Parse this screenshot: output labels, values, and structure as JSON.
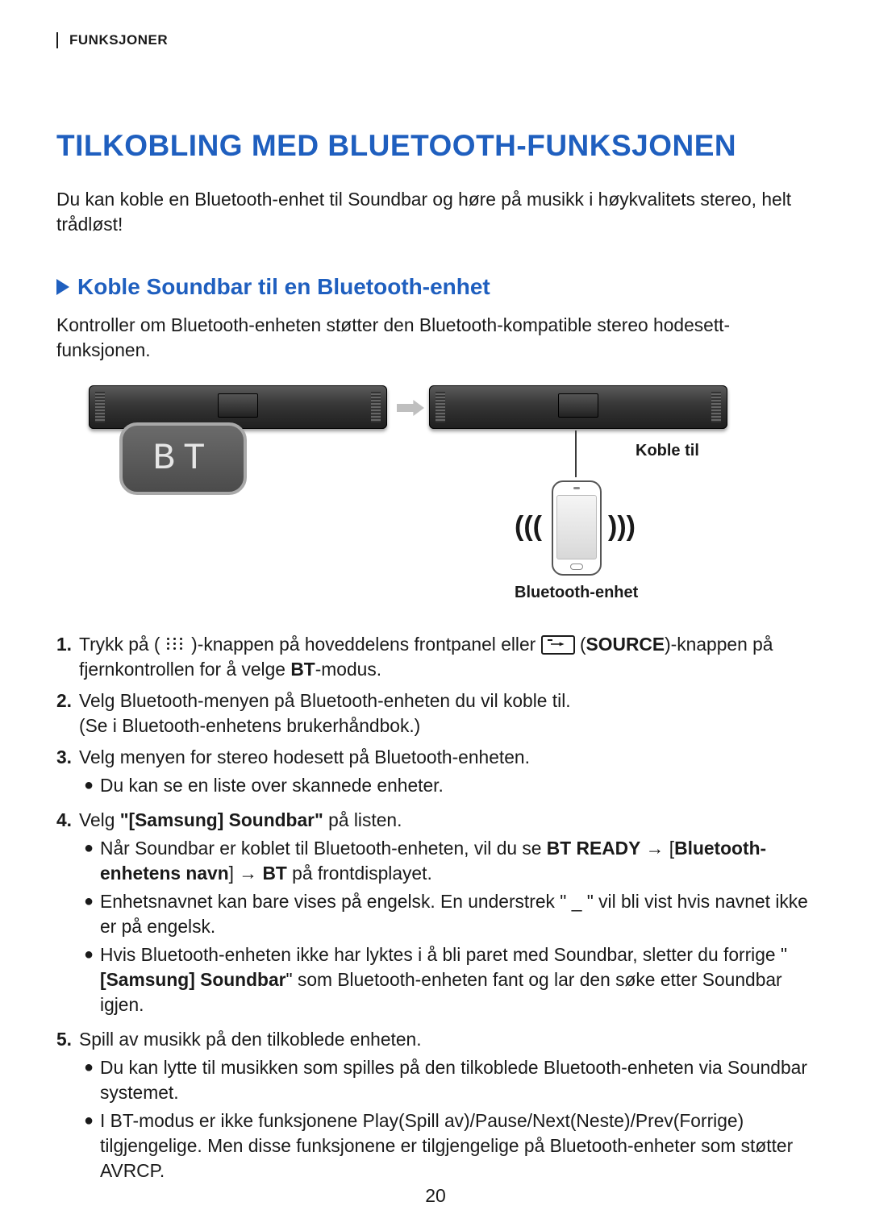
{
  "colors": {
    "accent_blue": "#1f5fbf",
    "text": "#1a1a1a",
    "rule": "#1a1a1a"
  },
  "header": {
    "section": "FUNKSJONER"
  },
  "page_number": "20",
  "title": "TILKOBLING MED BLUETOOTH-FUNKSJONEN",
  "intro": "Du kan koble en Bluetooth-enhet til Soundbar og høre på musikk i høykvalitets stereo, helt trådløst!",
  "subsection": {
    "title": "Koble Soundbar til en Bluetooth-enhet",
    "desc": "Kontroller om Bluetooth-enheten støtter den Bluetooth-kompatible stereo hodesett-funksjonen."
  },
  "diagram": {
    "bt_badge": "BT",
    "connect_label": "Koble til",
    "device_label": "Bluetooth-enhet"
  },
  "steps": [
    {
      "num": "1.",
      "segments": [
        {
          "t": "Trykk på ( "
        },
        {
          "icon": "dots"
        },
        {
          "t": " )-knappen på hoveddelens frontpanel eller "
        },
        {
          "icon": "source"
        },
        {
          "t": " ("
        },
        {
          "t": "SOURCE",
          "bold": true
        },
        {
          "t": ")-knappen på fjernkontrollen for å velge "
        },
        {
          "t": "BT",
          "bold": true
        },
        {
          "t": "-modus."
        }
      ]
    },
    {
      "num": "2.",
      "segments": [
        {
          "t": "Velg Bluetooth-menyen på Bluetooth-enheten du vil koble til."
        },
        {
          "br": true
        },
        {
          "t": "(Se i Bluetooth-enhetens brukerhåndbok.)"
        }
      ]
    },
    {
      "num": "3.",
      "segments": [
        {
          "t": "Velg menyen for stereo hodesett på Bluetooth-enheten."
        }
      ],
      "bullets": [
        [
          {
            "t": "Du kan se en liste over skannede enheter."
          }
        ]
      ]
    },
    {
      "num": "4.",
      "segments": [
        {
          "t": "Velg "
        },
        {
          "t": "\"[Samsung] Soundbar\"",
          "bold": true
        },
        {
          "t": " på listen."
        }
      ],
      "bullets": [
        [
          {
            "t": "Når Soundbar er koblet til Bluetooth-enheten, vil du se "
          },
          {
            "t": "BT READY",
            "bold": true
          },
          {
            "t": " → ["
          },
          {
            "t": "Bluetooth-enhetens navn",
            "bold": true
          },
          {
            "t": "] → "
          },
          {
            "t": "BT",
            "bold": true
          },
          {
            "t": " på frontdisplayet."
          }
        ],
        [
          {
            "t": "Enhetsnavnet kan bare vises på engelsk. En understrek \" _ \" vil bli vist hvis navnet ikke er på engelsk."
          }
        ],
        [
          {
            "t": "Hvis Bluetooth-enheten ikke har lyktes i å bli paret med Soundbar, sletter du forrige \""
          },
          {
            "t": "[Samsung] Soundbar",
            "bold": true
          },
          {
            "t": "\" som Bluetooth-enheten fant og lar den søke etter Soundbar igjen."
          }
        ]
      ]
    },
    {
      "num": "5.",
      "segments": [
        {
          "t": "Spill av musikk på den tilkoblede enheten."
        }
      ],
      "bullets": [
        [
          {
            "t": "Du kan lytte til musikken som spilles på den tilkoblede Bluetooth-enheten via Soundbar systemet."
          }
        ],
        [
          {
            "t": "I BT-modus er ikke funksjonene Play(Spill av)/Pause/Next(Neste)/Prev(Forrige) tilgjengelige. Men disse funksjonene er tilgjengelige på Bluetooth-enheter som støtter AVRCP."
          }
        ]
      ]
    }
  ]
}
